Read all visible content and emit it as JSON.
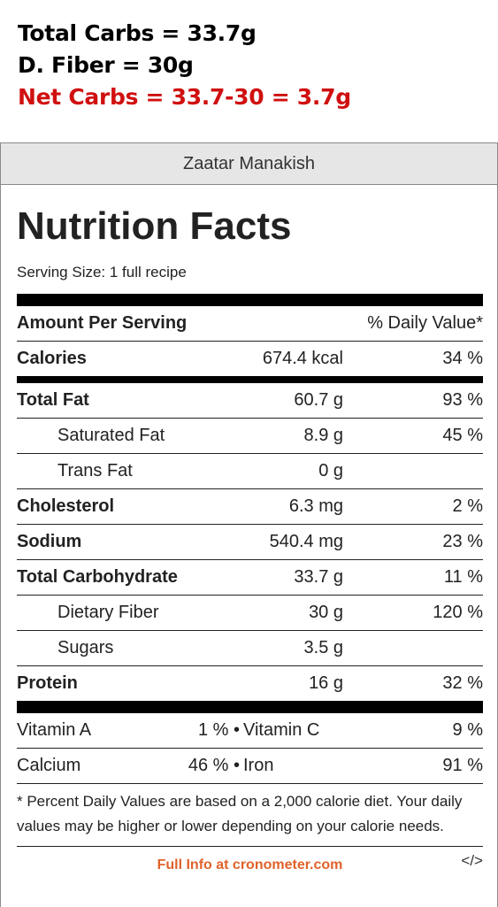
{
  "annotation": {
    "line1": "Total Carbs = 33.7g",
    "line2": "D. Fiber = 30g",
    "line3": "Net Carbs = 33.7-30 = 3.7g"
  },
  "recipe_name": "Zaatar Manakish",
  "label": {
    "title": "Nutrition Facts",
    "serving": "Serving Size: 1 full recipe",
    "header_left": "Amount Per Serving",
    "header_right": "% Daily Value*",
    "rows": [
      {
        "name": "Calories",
        "amount": "674.4 kcal",
        "dv": "34 %"
      },
      {
        "name": "Total Fat",
        "amount": "60.7 g",
        "dv": "93 %"
      },
      {
        "name": "Saturated Fat",
        "amount": "8.9 g",
        "dv": "45 %"
      },
      {
        "name": "Trans Fat",
        "amount": "0 g",
        "dv": ""
      },
      {
        "name": "Cholesterol",
        "amount": "6.3 mg",
        "dv": "2 %"
      },
      {
        "name": "Sodium",
        "amount": "540.4 mg",
        "dv": "23 %"
      },
      {
        "name": "Total Carbohydrate",
        "amount": "33.7 g",
        "dv": "11 %"
      },
      {
        "name": "Dietary Fiber",
        "amount": "30 g",
        "dv": "120 %"
      },
      {
        "name": "Sugars",
        "amount": "3.5 g",
        "dv": ""
      },
      {
        "name": "Protein",
        "amount": "16 g",
        "dv": "32 %"
      }
    ],
    "vitamins": [
      {
        "name1": "Vitamin A",
        "val1": "1 % •",
        "name2": "Vitamin C",
        "val2": "9 %"
      },
      {
        "name1": "Calcium",
        "val1": "46 % •",
        "name2": "Iron",
        "val2": "91 %"
      }
    ],
    "footnote": "* Percent Daily Values are based on a 2,000 calorie diet. Your daily values may be higher or lower depending on your calorie needs.",
    "link": "Full Info at cronometer.com",
    "embed": "</>"
  }
}
